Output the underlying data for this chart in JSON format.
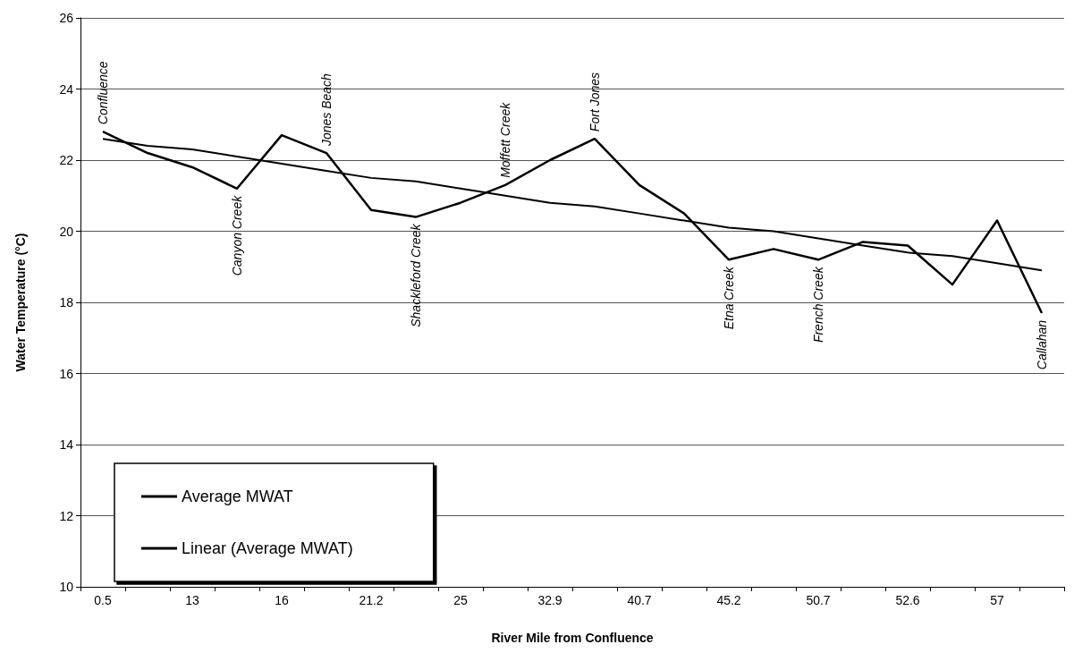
{
  "chart_data": {
    "type": "line",
    "xlabel": "River Mile from Confluence",
    "ylabel": "Water Temperature (°C)",
    "categories": [
      "0.5",
      null,
      "13",
      null,
      "16",
      null,
      "21.2",
      null,
      "25",
      null,
      "32.9",
      null,
      "40.7",
      null,
      "45.2",
      null,
      "50.7",
      null,
      "52.6",
      null,
      "57",
      null
    ],
    "series": [
      {
        "name": "Average MWAT",
        "color": "#000000",
        "values": [
          22.8,
          22.2,
          21.8,
          21.2,
          22.7,
          22.2,
          20.6,
          20.4,
          20.8,
          21.3,
          22.0,
          22.6,
          21.3,
          20.5,
          19.2,
          19.5,
          19.2,
          19.7,
          19.6,
          18.5,
          20.3,
          17.7
        ],
        "value_labels": [
          "Confluence",
          null,
          null,
          "Canyon Creek",
          null,
          "Jones Beach",
          null,
          "Shackleford Creek",
          null,
          "Moffett Creek",
          null,
          "Fort Jones",
          null,
          null,
          "Etna Creek",
          null,
          "French Creek",
          null,
          null,
          null,
          null,
          "Callahan"
        ]
      },
      {
        "name": "Linear (Average MWAT)",
        "color": "#000000",
        "values": [
          22.6,
          22.4,
          22.3,
          22.1,
          21.9,
          21.7,
          21.5,
          21.4,
          21.2,
          21.0,
          20.8,
          20.7,
          20.5,
          20.3,
          20.1,
          20.0,
          19.8,
          19.6,
          19.4,
          19.3,
          19.1,
          18.9
        ]
      }
    ],
    "ylim": [
      10,
      26
    ],
    "yticks": [
      10,
      12,
      14,
      16,
      18,
      20,
      22,
      24,
      26
    ],
    "grid": "y",
    "legend": "bottom left",
    "marker": "none",
    "line_style": "solid"
  }
}
